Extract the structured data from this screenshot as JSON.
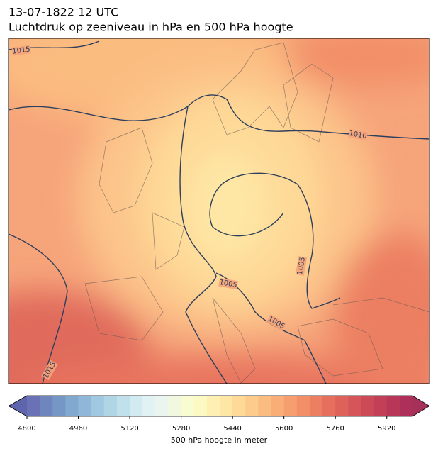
{
  "header": {
    "title": "13-07-1822 12 UTC",
    "subtitle": "Luchtdruk op zeeniveau in hPa en 500 hPa hoogte"
  },
  "map": {
    "isobar_labels": [
      1015,
      1010,
      1005,
      1005,
      1005,
      1015
    ]
  },
  "colorbar": {
    "label": "500 hPa hoogte in meter",
    "lim": [
      4800,
      6000
    ],
    "ticks": [
      4800,
      4960,
      5120,
      5280,
      5440,
      5600,
      5760,
      5920
    ],
    "colors": [
      "#6a72b5",
      "#6e85bd",
      "#7597c6",
      "#81a9cf",
      "#8fb8d8",
      "#a0c8e0",
      "#b0d6e6",
      "#c0e1ec",
      "#d2ebf1",
      "#e1f2f4",
      "#eaf5ef",
      "#f2f8e0",
      "#f9fbd0",
      "#fdf9c2",
      "#fef0b3",
      "#fee6a4",
      "#fed997",
      "#fdcb8b",
      "#fbbc80",
      "#f9ad77",
      "#f69e6f",
      "#f28e68",
      "#ec7f62",
      "#e6705d",
      "#de625a",
      "#d55558",
      "#cc4a57",
      "#c24057",
      "#b83758",
      "#ad2f5a"
    ],
    "extend_colors": [
      "#5f65ad",
      "#a5305a"
    ]
  }
}
